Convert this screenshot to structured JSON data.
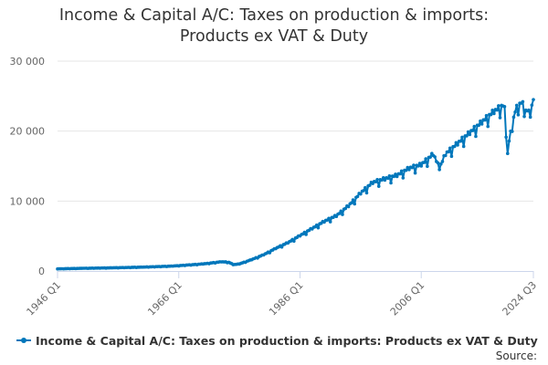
{
  "title_lines": [
    "Income & Capital A/C: Taxes on production & imports:",
    "Products ex VAT & Duty"
  ],
  "credits": "Source:",
  "colors": {
    "series": "#0077bb",
    "grid": "#e6e6e6",
    "axis": "#ccd6eb"
  },
  "chart_data": {
    "type": "line",
    "title": "Income & Capital A/C: Taxes on production & imports: Products ex VAT & Duty",
    "x_range": [
      "1946 Q1",
      "2024 Q3"
    ],
    "x_ticks": [
      "1946 Q1",
      "1966 Q1",
      "1986 Q1",
      "2006 Q1",
      "2024 Q3"
    ],
    "y_ticks": [
      0,
      10000,
      20000,
      30000
    ],
    "y_tick_labels": [
      "0",
      "10 000",
      "20 000",
      "30 000"
    ],
    "ylim": [
      0,
      30000
    ],
    "grid": true,
    "legend": "bottom",
    "series": [
      {
        "name": "Income & Capital A/C: Taxes on production & imports: Products ex VAT & Duty",
        "frequency": "quarterly",
        "anchors": [
          [
            "1946 Q1",
            300
          ],
          [
            "1950 Q1",
            380
          ],
          [
            "1955 Q1",
            450
          ],
          [
            "1960 Q1",
            550
          ],
          [
            "1965 Q1",
            700
          ],
          [
            "1970 Q1",
            1000
          ],
          [
            "1973 Q1",
            1300
          ],
          [
            "1974 Q2",
            1250
          ],
          [
            "1975 Q1",
            900
          ],
          [
            "1976 Q1",
            1000
          ],
          [
            "1978 Q1",
            1600
          ],
          [
            "1980 Q1",
            2300
          ],
          [
            "1982 Q1",
            3200
          ],
          [
            "1984 Q1",
            4000
          ],
          [
            "1986 Q1",
            5000
          ],
          [
            "1988 Q1",
            6000
          ],
          [
            "1990 Q1",
            7000
          ],
          [
            "1992 Q1",
            7800
          ],
          [
            "1994 Q1",
            9200
          ],
          [
            "1996 Q1",
            11000
          ],
          [
            "1998 Q1",
            12500
          ],
          [
            "2000 Q1",
            13000
          ],
          [
            "2002 Q1",
            13500
          ],
          [
            "2004 Q1",
            14500
          ],
          [
            "2006 Q1",
            15000
          ],
          [
            "2008 Q1",
            16500
          ],
          [
            "2009 Q1",
            14500
          ],
          [
            "2010 Q1",
            16500
          ],
          [
            "2012 Q1",
            18000
          ],
          [
            "2014 Q1",
            19500
          ],
          [
            "2016 Q1",
            21000
          ],
          [
            "2018 Q1",
            22500
          ],
          [
            "2019 Q4",
            23500
          ],
          [
            "2020 Q2",
            16800
          ],
          [
            "2020 Q4",
            20000
          ],
          [
            "2021 Q2",
            22000
          ],
          [
            "2022 Q2",
            24000
          ],
          [
            "2023 Q2",
            23000
          ],
          [
            "2024 Q1",
            22000
          ],
          [
            "2024 Q3",
            24500
          ]
        ],
        "seasonal_amplitude": 0.05
      }
    ]
  }
}
